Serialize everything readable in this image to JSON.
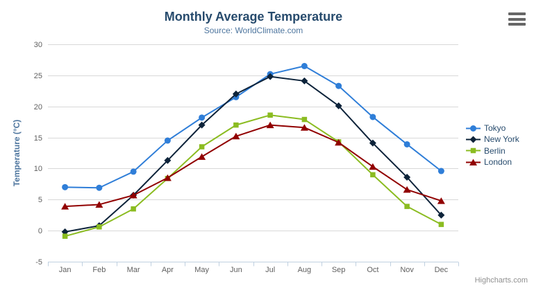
{
  "chart_data": {
    "type": "line",
    "title": "Monthly Average Temperature",
    "subtitle": "Source: WorldClimate.com",
    "categories": [
      "Jan",
      "Feb",
      "Mar",
      "Apr",
      "May",
      "Jun",
      "Jul",
      "Aug",
      "Sep",
      "Oct",
      "Nov",
      "Dec"
    ],
    "xlabel": "",
    "ylabel": "Temperature (°C)",
    "ylim": [
      -5,
      30
    ],
    "yticks": [
      -5,
      0,
      5,
      10,
      15,
      20,
      25,
      30
    ],
    "grid": true,
    "legend_position": "right",
    "series": [
      {
        "name": "Tokyo",
        "color": "#2f7ed8",
        "marker": "circle",
        "values": [
          7.0,
          6.9,
          9.5,
          14.5,
          18.2,
          21.5,
          25.2,
          26.5,
          23.3,
          18.3,
          13.9,
          9.6
        ]
      },
      {
        "name": "New York",
        "color": "#0d233a",
        "marker": "diamond",
        "values": [
          -0.2,
          0.8,
          5.7,
          11.3,
          17.0,
          22.0,
          24.8,
          24.1,
          20.1,
          14.1,
          8.6,
          2.5
        ]
      },
      {
        "name": "Berlin",
        "color": "#8bbc21",
        "marker": "square",
        "values": [
          -0.9,
          0.6,
          3.5,
          8.4,
          13.5,
          17.0,
          18.6,
          17.9,
          14.3,
          9.0,
          3.9,
          1.0
        ]
      },
      {
        "name": "London",
        "color": "#910000",
        "marker": "triangle",
        "values": [
          3.9,
          4.2,
          5.7,
          8.5,
          11.9,
          15.2,
          17.0,
          16.6,
          14.2,
          10.3,
          6.6,
          4.8
        ]
      }
    ]
  },
  "credit": {
    "label": "Highcharts.com"
  },
  "context_menu": {
    "icon": "hamburger"
  },
  "colors": {
    "title": "#274b6d",
    "subtitle": "#4d759e",
    "axis_title": "#4d759e",
    "axis_label": "#606060",
    "grid_line": "#d8d8d8",
    "axis_line": "#c0d0e0",
    "legend_text": "#274b6d",
    "credit_text": "#909090",
    "burger": "#666666"
  }
}
